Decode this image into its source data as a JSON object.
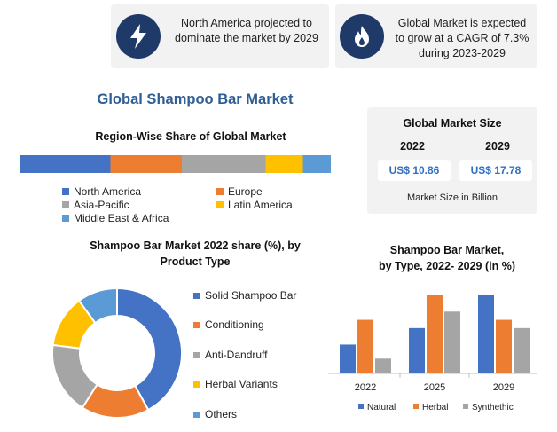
{
  "top_cards": [
    {
      "text_line1": "North America projected to",
      "text_line2": "dominate the market by 2029",
      "icon": "lightning-icon"
    },
    {
      "text_line1": "Global Market is expected",
      "text_line2": "to grow at a CAGR of 7.3%",
      "text_line3": "during 2023-2029",
      "icon": "flame-icon"
    }
  ],
  "main_title": "Global Shampoo Bar Market",
  "market_size": {
    "title": "Global Market Size",
    "year1": "2022",
    "year2": "2029",
    "value1": "US$ 10.86",
    "value2": "US$ 17.78",
    "note": "Market Size in Billion"
  },
  "colors": {
    "blue": "#4472c4",
    "orange": "#ed7d31",
    "gray": "#a5a5a5",
    "yellow": "#ffc000",
    "lightblue": "#5b9bd5",
    "navy": "#1f3a68",
    "title_blue": "#2f5e94"
  },
  "chart_data": [
    {
      "type": "bar",
      "orientation": "horizontal-stacked",
      "title": "Region-Wise Share of Global Market",
      "categories": [
        "North America",
        "Europe",
        "Asia-Pacific",
        "Latin America",
        "Middle East & Africa"
      ],
      "values": [
        29,
        23,
        27,
        12,
        9
      ],
      "legend_labels": [
        "North America",
        "Europe",
        "Asia-Pacific",
        "Latin America",
        "Middle East & Africa"
      ]
    },
    {
      "type": "pie",
      "variant": "donut",
      "title_line1": "Shampoo Bar Market 2022 share (%), by",
      "title_line2": "Product Type",
      "categories": [
        "Solid Shampoo Bar",
        "Conditioning",
        "Anti-Dandruff",
        "Herbal Variants",
        "Others"
      ],
      "values": [
        42,
        17,
        18,
        13,
        10
      ],
      "legend_placement": "right"
    },
    {
      "type": "bar",
      "title_line1": "Shampoo Bar Market,",
      "title_line2": "by Type, 2022- 2029 (in %)",
      "categories": [
        "2022",
        "2025",
        "2029"
      ],
      "series": [
        {
          "name": "Natural",
          "values": [
            35,
            55,
            95
          ]
        },
        {
          "name": "Herbal",
          "values": [
            65,
            95,
            65
          ]
        },
        {
          "name": "Synthethic",
          "values": [
            18,
            75,
            55
          ]
        }
      ],
      "ylim": [
        0,
        100
      ],
      "legend_placement": "bottom"
    }
  ]
}
